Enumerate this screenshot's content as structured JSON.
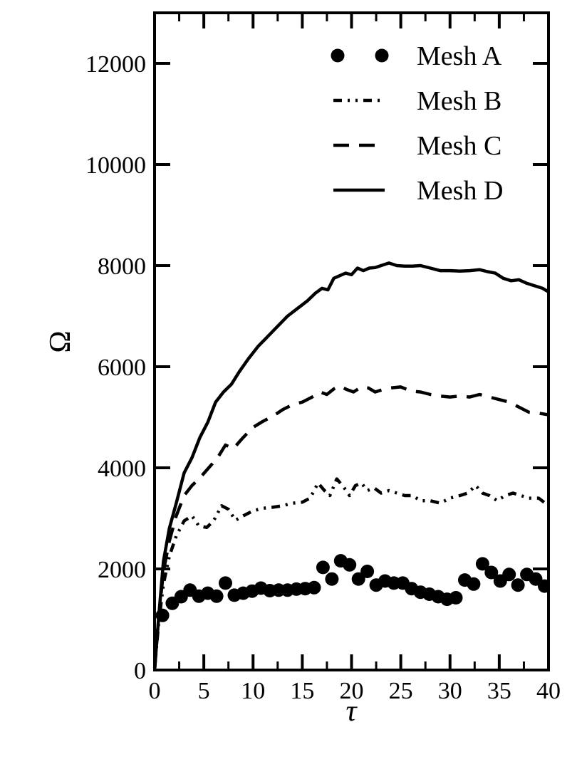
{
  "chart_data": {
    "type": "line",
    "title": "",
    "xlabel": "τ",
    "ylabel": "Ω",
    "xlim": [
      0,
      40
    ],
    "ylim": [
      0,
      13000
    ],
    "xticks": [
      0,
      5,
      10,
      15,
      20,
      25,
      30,
      35,
      40
    ],
    "yticks": [
      0,
      2000,
      4000,
      6000,
      8000,
      10000,
      12000
    ],
    "xtick_labels": [
      "0",
      "5",
      "10",
      "15",
      "20",
      "25",
      "30",
      "35",
      "40"
    ],
    "ytick_labels": [
      "0",
      "2000",
      "4000",
      "6000",
      "8000",
      "10000",
      "12000"
    ],
    "grid": false,
    "legend_position": "top-right",
    "series": [
      {
        "name": "Mesh A",
        "style": "markers",
        "color": "#000000",
        "x": [
          0.8,
          1.8,
          2.7,
          3.6,
          4.5,
          5.4,
          6.3,
          7.2,
          8.1,
          9.0,
          9.9,
          10.8,
          11.7,
          12.6,
          13.5,
          14.4,
          15.3,
          16.2,
          17.1,
          18.0,
          18.9,
          19.8,
          20.7,
          21.6,
          22.5,
          23.4,
          24.3,
          25.2,
          26.1,
          27.0,
          27.9,
          28.8,
          29.7,
          30.6,
          31.5,
          32.4,
          33.3,
          34.2,
          35.1,
          36.0,
          36.9,
          37.8,
          38.7,
          39.6
        ],
        "y": [
          1080,
          1320,
          1450,
          1580,
          1460,
          1520,
          1460,
          1720,
          1480,
          1520,
          1560,
          1620,
          1570,
          1580,
          1580,
          1600,
          1610,
          1630,
          2030,
          1800,
          2160,
          2080,
          1800,
          1950,
          1680,
          1760,
          1720,
          1720,
          1610,
          1540,
          1500,
          1450,
          1400,
          1430,
          1780,
          1700,
          2100,
          1930,
          1760,
          1890,
          1680,
          1890,
          1800,
          1660
        ]
      },
      {
        "name": "Mesh B",
        "style": "dash-dot-dot",
        "color": "#000000",
        "x": [
          0,
          0.4,
          0.9,
          1.5,
          2.2,
          3.0,
          3.8,
          4.5,
          5.3,
          6.0,
          6.8,
          7.5,
          8.2,
          9.0,
          10.0,
          11.0,
          12.0,
          13.0,
          14.0,
          15.0,
          15.8,
          16.6,
          17.2,
          17.8,
          18.5,
          19.2,
          19.8,
          20.4,
          21.0,
          21.6,
          22.3,
          23.0,
          23.8,
          24.6,
          25.4,
          26.2,
          27.0,
          28.0,
          29.0,
          30.0,
          31.0,
          31.8,
          32.6,
          33.3,
          34.0,
          34.8,
          35.6,
          36.4,
          37.2,
          38.0,
          39.0,
          40.0
        ],
        "y": [
          0,
          900,
          1700,
          2250,
          2650,
          2950,
          3050,
          2850,
          2820,
          2950,
          3250,
          3180,
          2960,
          3050,
          3150,
          3200,
          3220,
          3250,
          3300,
          3320,
          3400,
          3700,
          3560,
          3450,
          3780,
          3620,
          3450,
          3650,
          3700,
          3550,
          3600,
          3500,
          3550,
          3500,
          3450,
          3450,
          3350,
          3350,
          3300,
          3400,
          3450,
          3500,
          3650,
          3500,
          3450,
          3350,
          3450,
          3500,
          3450,
          3400,
          3400,
          3250
        ]
      },
      {
        "name": "Mesh C",
        "style": "dashed",
        "color": "#000000",
        "x": [
          0,
          0.4,
          0.9,
          1.5,
          2.2,
          3.0,
          3.8,
          4.6,
          5.5,
          6.4,
          7.2,
          8.0,
          9.0,
          10.0,
          11.0,
          12.0,
          13.0,
          14.0,
          15.0,
          16.0,
          16.8,
          17.5,
          18.2,
          18.8,
          19.5,
          20.2,
          21.0,
          21.7,
          22.4,
          23.2,
          24.0,
          25.0,
          26.0,
          27.0,
          28.0,
          29.0,
          30.0,
          31.0,
          32.0,
          33.0,
          34.0,
          35.0,
          36.0,
          37.0,
          38.0,
          39.0,
          40.0
        ],
        "y": [
          0,
          1000,
          1950,
          2550,
          3050,
          3450,
          3650,
          3800,
          4000,
          4200,
          4450,
          4380,
          4600,
          4800,
          4920,
          5020,
          5150,
          5250,
          5300,
          5400,
          5500,
          5450,
          5560,
          5620,
          5550,
          5500,
          5600,
          5580,
          5500,
          5550,
          5580,
          5600,
          5520,
          5500,
          5450,
          5420,
          5400,
          5420,
          5400,
          5450,
          5400,
          5350,
          5300,
          5200,
          5100,
          5080,
          5050
        ]
      },
      {
        "name": "Mesh D",
        "style": "solid",
        "color": "#000000",
        "x": [
          0,
          0.4,
          0.9,
          1.5,
          2.2,
          3.0,
          3.8,
          4.6,
          5.4,
          6.2,
          7.0,
          7.8,
          8.6,
          9.5,
          10.5,
          11.5,
          12.5,
          13.5,
          14.5,
          15.5,
          16.3,
          17.0,
          17.6,
          18.2,
          18.8,
          19.4,
          20.0,
          20.6,
          21.2,
          21.8,
          22.4,
          23.0,
          23.8,
          24.6,
          25.4,
          26.2,
          27.0,
          28.0,
          29.0,
          30.0,
          31.0,
          32.0,
          33.0,
          33.8,
          34.6,
          35.4,
          36.2,
          37.0,
          37.8,
          38.6,
          39.4,
          40.0
        ],
        "y": [
          0,
          1000,
          2150,
          2800,
          3300,
          3900,
          4200,
          4600,
          4900,
          5300,
          5500,
          5650,
          5900,
          6150,
          6400,
          6600,
          6800,
          7000,
          7150,
          7300,
          7450,
          7550,
          7520,
          7750,
          7800,
          7850,
          7820,
          7950,
          7900,
          7950,
          7960,
          8000,
          8050,
          8000,
          7990,
          7990,
          8000,
          7950,
          7900,
          7900,
          7890,
          7900,
          7920,
          7880,
          7850,
          7750,
          7700,
          7720,
          7650,
          7600,
          7550,
          7480
        ]
      }
    ]
  }
}
